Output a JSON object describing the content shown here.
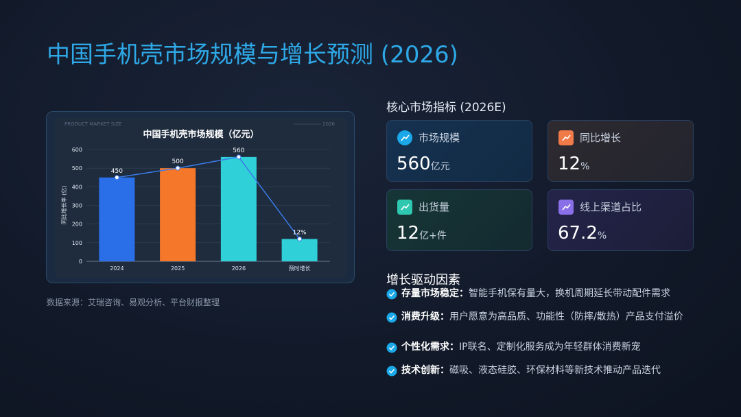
{
  "title": "中国手机壳市场规模与增长预测 (2026)",
  "chart_data": {
    "type": "bar",
    "header_left": "PRODUCT MARKET SIZE",
    "header_right": "2026",
    "title": "中国手机壳市场规模（亿元）",
    "y_label": "同比增长率 (亿)",
    "categories": [
      "2024",
      "2025",
      "2026",
      "预时增长"
    ],
    "values": [
      450,
      500,
      560,
      120
    ],
    "value_labels": [
      "450",
      "500",
      "560",
      null
    ],
    "annotation": "12%",
    "colors": [
      "#2a6fe8",
      "#f5782a",
      "#2fd0d8",
      "#2fd0d8"
    ],
    "line_color": "#3b7be8",
    "ylim": [
      0,
      600
    ],
    "yticks": [
      0,
      100,
      200,
      300,
      400,
      500,
      600
    ],
    "grid": true
  },
  "source": "数据来源：艾瑞咨询、易观分析、平台财报整理",
  "metrics": {
    "title": "核心市场指标 (2026E)",
    "cards": [
      {
        "label": "市场规模",
        "value": "560",
        "unit": "亿元"
      },
      {
        "label": "同比增长",
        "value": "12",
        "unit": "%"
      },
      {
        "label": "出货量",
        "value": "12",
        "unit": "亿+件"
      },
      {
        "label": "线上渠道占比",
        "value": "67.2",
        "unit": "%"
      }
    ]
  },
  "drivers": {
    "title": "增长驱动因素",
    "items": [
      {
        "lead": "存量市场稳定：",
        "text": "智能手机保有量大，换机周期延长带动配件需求"
      },
      {
        "lead": "消费升级：",
        "text": "用户愿意为高品质、功能性（防摔/散热）产品支付溢价"
      },
      {
        "lead": "个性化需求：",
        "text": "IP联名、定制化服务成为年轻群体消费新宠"
      },
      {
        "lead": "技术创新：",
        "text": "磁吸、液态硅胶、环保材料等新技术推动产品迭代"
      }
    ]
  }
}
